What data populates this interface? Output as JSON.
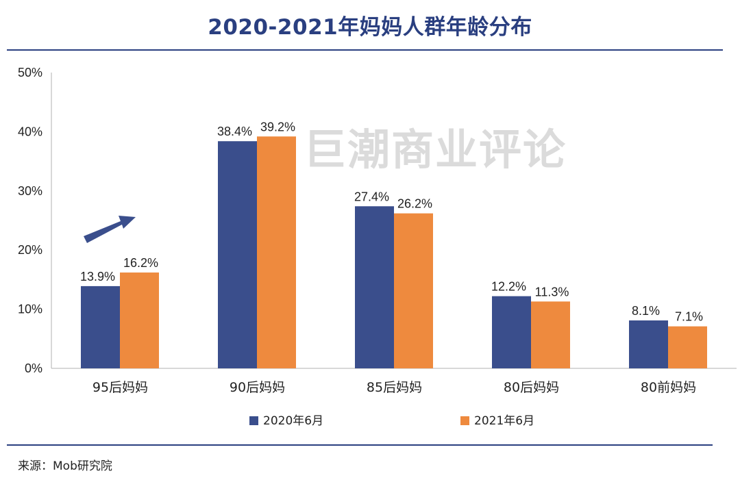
{
  "title": "2020-2021年妈妈人群年龄分布",
  "watermark": "巨潮商业评论",
  "source": {
    "label": "来源：",
    "value": "Mob研究院"
  },
  "colors": {
    "title": "#2a3f80",
    "series_2020": "#3a4e8c",
    "series_2021": "#ee8a3e",
    "arrow": "#3a4e8c"
  },
  "chart_data": {
    "type": "bar",
    "categories": [
      "95后妈妈",
      "90后妈妈",
      "85后妈妈",
      "80后妈妈",
      "80前妈妈"
    ],
    "series": [
      {
        "name": "2020年6月",
        "values": [
          13.9,
          38.4,
          27.4,
          12.2,
          8.1
        ],
        "labels": [
          "13.9%",
          "38.4%",
          "27.4%",
          "12.2%",
          "8.1%"
        ]
      },
      {
        "name": "2021年6月",
        "values": [
          16.2,
          39.2,
          26.2,
          11.3,
          7.1
        ],
        "labels": [
          "16.2%",
          "39.2%",
          "26.2%",
          "11.3%",
          "7.1%"
        ]
      }
    ],
    "ylim": [
      0,
      50
    ],
    "yticks": [
      "0%",
      "10%",
      "20%",
      "30%",
      "40%",
      "50%"
    ],
    "ytick_values": [
      0,
      10,
      20,
      30,
      40,
      50
    ],
    "legend_position": "bottom-center",
    "grid": false,
    "annotation": "upward-arrow-icon"
  }
}
